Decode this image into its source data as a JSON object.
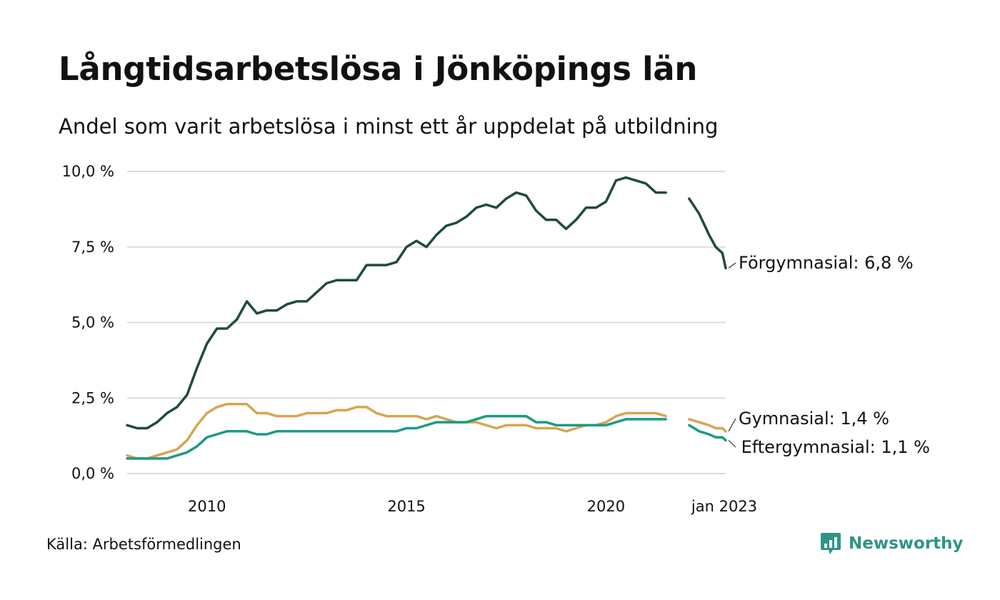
{
  "header": {
    "title": "Långtidsarbetslösa i Jönköpings län",
    "subtitle": "Andel som varit arbetslösa i minst ett år uppdelat på utbildning"
  },
  "footer": {
    "source": "Källa: Arbetsförmedlingen",
    "brand": "Newsworthy",
    "brand_color": "#2f9488"
  },
  "chart_data": {
    "type": "line",
    "title": "Långtidsarbetslösa i Jönköpings län",
    "subtitle": "Andel som varit arbetslösa i minst ett år uppdelat på utbildning",
    "xlabel": "",
    "ylabel": "",
    "ylim": [
      0,
      10
    ],
    "y_ticks": [
      {
        "value": 0,
        "label": "0,0 %"
      },
      {
        "value": 2.5,
        "label": "2,5 %"
      },
      {
        "value": 5,
        "label": "5,0 %"
      },
      {
        "value": 7.5,
        "label": "7,5 %"
      },
      {
        "value": 10,
        "label": "10,0 %"
      }
    ],
    "xlim": [
      "2008-01",
      "2023-01"
    ],
    "x_ticks": [
      {
        "date": "2010-01",
        "label": "2010"
      },
      {
        "date": "2015-01",
        "label": "2015"
      },
      {
        "date": "2020-01",
        "label": "2020"
      },
      {
        "date": "2023-01",
        "label": "jan 2023"
      }
    ],
    "grid": true,
    "legend": "end-labels",
    "gap": [
      "2021-08",
      "2022-02"
    ],
    "series": [
      {
        "name": "Förgymnasial",
        "end_label": "Förgymnasial: 6,8 %",
        "color": "#1f4a42",
        "points": [
          [
            "2008-01",
            1.6
          ],
          [
            "2008-04",
            1.5
          ],
          [
            "2008-07",
            1.5
          ],
          [
            "2008-10",
            1.7
          ],
          [
            "2009-01",
            2.0
          ],
          [
            "2009-04",
            2.2
          ],
          [
            "2009-07",
            2.6
          ],
          [
            "2009-10",
            3.5
          ],
          [
            "2010-01",
            4.3
          ],
          [
            "2010-04",
            4.8
          ],
          [
            "2010-07",
            4.8
          ],
          [
            "2010-10",
            5.1
          ],
          [
            "2011-01",
            5.7
          ],
          [
            "2011-04",
            5.3
          ],
          [
            "2011-07",
            5.4
          ],
          [
            "2011-10",
            5.4
          ],
          [
            "2012-01",
            5.6
          ],
          [
            "2012-04",
            5.7
          ],
          [
            "2012-07",
            5.7
          ],
          [
            "2012-10",
            6.0
          ],
          [
            "2013-01",
            6.3
          ],
          [
            "2013-04",
            6.4
          ],
          [
            "2013-07",
            6.4
          ],
          [
            "2013-10",
            6.4
          ],
          [
            "2014-01",
            6.9
          ],
          [
            "2014-04",
            6.9
          ],
          [
            "2014-07",
            6.9
          ],
          [
            "2014-10",
            7.0
          ],
          [
            "2015-01",
            7.5
          ],
          [
            "2015-04",
            7.7
          ],
          [
            "2015-07",
            7.5
          ],
          [
            "2015-10",
            7.9
          ],
          [
            "2016-01",
            8.2
          ],
          [
            "2016-04",
            8.3
          ],
          [
            "2016-07",
            8.5
          ],
          [
            "2016-10",
            8.8
          ],
          [
            "2017-01",
            8.9
          ],
          [
            "2017-04",
            8.8
          ],
          [
            "2017-07",
            9.1
          ],
          [
            "2017-10",
            9.3
          ],
          [
            "2018-01",
            9.2
          ],
          [
            "2018-04",
            8.7
          ],
          [
            "2018-07",
            8.4
          ],
          [
            "2018-10",
            8.4
          ],
          [
            "2019-01",
            8.1
          ],
          [
            "2019-04",
            8.4
          ],
          [
            "2019-07",
            8.8
          ],
          [
            "2019-10",
            8.8
          ],
          [
            "2020-01",
            9.0
          ],
          [
            "2020-04",
            9.7
          ],
          [
            "2020-07",
            9.8
          ],
          [
            "2020-10",
            9.7
          ],
          [
            "2021-01",
            9.6
          ],
          [
            "2021-04",
            9.3
          ],
          [
            "2021-07",
            9.3
          ],
          [
            "2022-02",
            9.1
          ],
          [
            "2022-05",
            8.6
          ],
          [
            "2022-08",
            7.9
          ],
          [
            "2022-10",
            7.5
          ],
          [
            "2022-12",
            7.3
          ],
          [
            "2023-01",
            6.8
          ]
        ]
      },
      {
        "name": "Gymnasial",
        "end_label": "Gymnasial: 1,4 %",
        "color": "#d6a552",
        "points": [
          [
            "2008-01",
            0.6
          ],
          [
            "2008-04",
            0.5
          ],
          [
            "2008-07",
            0.5
          ],
          [
            "2008-10",
            0.6
          ],
          [
            "2009-01",
            0.7
          ],
          [
            "2009-04",
            0.8
          ],
          [
            "2009-07",
            1.1
          ],
          [
            "2009-10",
            1.6
          ],
          [
            "2010-01",
            2.0
          ],
          [
            "2010-04",
            2.2
          ],
          [
            "2010-07",
            2.3
          ],
          [
            "2010-10",
            2.3
          ],
          [
            "2011-01",
            2.3
          ],
          [
            "2011-04",
            2.0
          ],
          [
            "2011-07",
            2.0
          ],
          [
            "2011-10",
            1.9
          ],
          [
            "2012-01",
            1.9
          ],
          [
            "2012-04",
            1.9
          ],
          [
            "2012-07",
            2.0
          ],
          [
            "2012-10",
            2.0
          ],
          [
            "2013-01",
            2.0
          ],
          [
            "2013-04",
            2.1
          ],
          [
            "2013-07",
            2.1
          ],
          [
            "2013-10",
            2.2
          ],
          [
            "2014-01",
            2.2
          ],
          [
            "2014-04",
            2.0
          ],
          [
            "2014-07",
            1.9
          ],
          [
            "2014-10",
            1.9
          ],
          [
            "2015-01",
            1.9
          ],
          [
            "2015-04",
            1.9
          ],
          [
            "2015-07",
            1.8
          ],
          [
            "2015-10",
            1.9
          ],
          [
            "2016-01",
            1.8
          ],
          [
            "2016-04",
            1.7
          ],
          [
            "2016-07",
            1.7
          ],
          [
            "2016-10",
            1.7
          ],
          [
            "2017-01",
            1.6
          ],
          [
            "2017-04",
            1.5
          ],
          [
            "2017-07",
            1.6
          ],
          [
            "2017-10",
            1.6
          ],
          [
            "2018-01",
            1.6
          ],
          [
            "2018-04",
            1.5
          ],
          [
            "2018-07",
            1.5
          ],
          [
            "2018-10",
            1.5
          ],
          [
            "2019-01",
            1.4
          ],
          [
            "2019-04",
            1.5
          ],
          [
            "2019-07",
            1.6
          ],
          [
            "2019-10",
            1.6
          ],
          [
            "2020-01",
            1.7
          ],
          [
            "2020-04",
            1.9
          ],
          [
            "2020-07",
            2.0
          ],
          [
            "2020-10",
            2.0
          ],
          [
            "2021-01",
            2.0
          ],
          [
            "2021-04",
            2.0
          ],
          [
            "2021-07",
            1.9
          ],
          [
            "2022-02",
            1.8
          ],
          [
            "2022-05",
            1.7
          ],
          [
            "2022-08",
            1.6
          ],
          [
            "2022-10",
            1.5
          ],
          [
            "2022-12",
            1.5
          ],
          [
            "2023-01",
            1.4
          ]
        ]
      },
      {
        "name": "Eftergymnasial",
        "end_label": "Eftergymnasial: 1,1 %",
        "color": "#1c9a84",
        "points": [
          [
            "2008-01",
            0.5
          ],
          [
            "2008-04",
            0.5
          ],
          [
            "2008-07",
            0.5
          ],
          [
            "2008-10",
            0.5
          ],
          [
            "2009-01",
            0.5
          ],
          [
            "2009-04",
            0.6
          ],
          [
            "2009-07",
            0.7
          ],
          [
            "2009-10",
            0.9
          ],
          [
            "2010-01",
            1.2
          ],
          [
            "2010-04",
            1.3
          ],
          [
            "2010-07",
            1.4
          ],
          [
            "2010-10",
            1.4
          ],
          [
            "2011-01",
            1.4
          ],
          [
            "2011-04",
            1.3
          ],
          [
            "2011-07",
            1.3
          ],
          [
            "2011-10",
            1.4
          ],
          [
            "2012-01",
            1.4
          ],
          [
            "2012-04",
            1.4
          ],
          [
            "2012-07",
            1.4
          ],
          [
            "2012-10",
            1.4
          ],
          [
            "2013-01",
            1.4
          ],
          [
            "2013-04",
            1.4
          ],
          [
            "2013-07",
            1.4
          ],
          [
            "2013-10",
            1.4
          ],
          [
            "2014-01",
            1.4
          ],
          [
            "2014-04",
            1.4
          ],
          [
            "2014-07",
            1.4
          ],
          [
            "2014-10",
            1.4
          ],
          [
            "2015-01",
            1.5
          ],
          [
            "2015-04",
            1.5
          ],
          [
            "2015-07",
            1.6
          ],
          [
            "2015-10",
            1.7
          ],
          [
            "2016-01",
            1.7
          ],
          [
            "2016-04",
            1.7
          ],
          [
            "2016-07",
            1.7
          ],
          [
            "2016-10",
            1.8
          ],
          [
            "2017-01",
            1.9
          ],
          [
            "2017-04",
            1.9
          ],
          [
            "2017-07",
            1.9
          ],
          [
            "2017-10",
            1.9
          ],
          [
            "2018-01",
            1.9
          ],
          [
            "2018-04",
            1.7
          ],
          [
            "2018-07",
            1.7
          ],
          [
            "2018-10",
            1.6
          ],
          [
            "2019-01",
            1.6
          ],
          [
            "2019-04",
            1.6
          ],
          [
            "2019-07",
            1.6
          ],
          [
            "2019-10",
            1.6
          ],
          [
            "2020-01",
            1.6
          ],
          [
            "2020-04",
            1.7
          ],
          [
            "2020-07",
            1.8
          ],
          [
            "2020-10",
            1.8
          ],
          [
            "2021-01",
            1.8
          ],
          [
            "2021-04",
            1.8
          ],
          [
            "2021-07",
            1.8
          ],
          [
            "2022-02",
            1.6
          ],
          [
            "2022-05",
            1.4
          ],
          [
            "2022-08",
            1.3
          ],
          [
            "2022-10",
            1.2
          ],
          [
            "2022-12",
            1.2
          ],
          [
            "2023-01",
            1.1
          ]
        ]
      }
    ]
  }
}
